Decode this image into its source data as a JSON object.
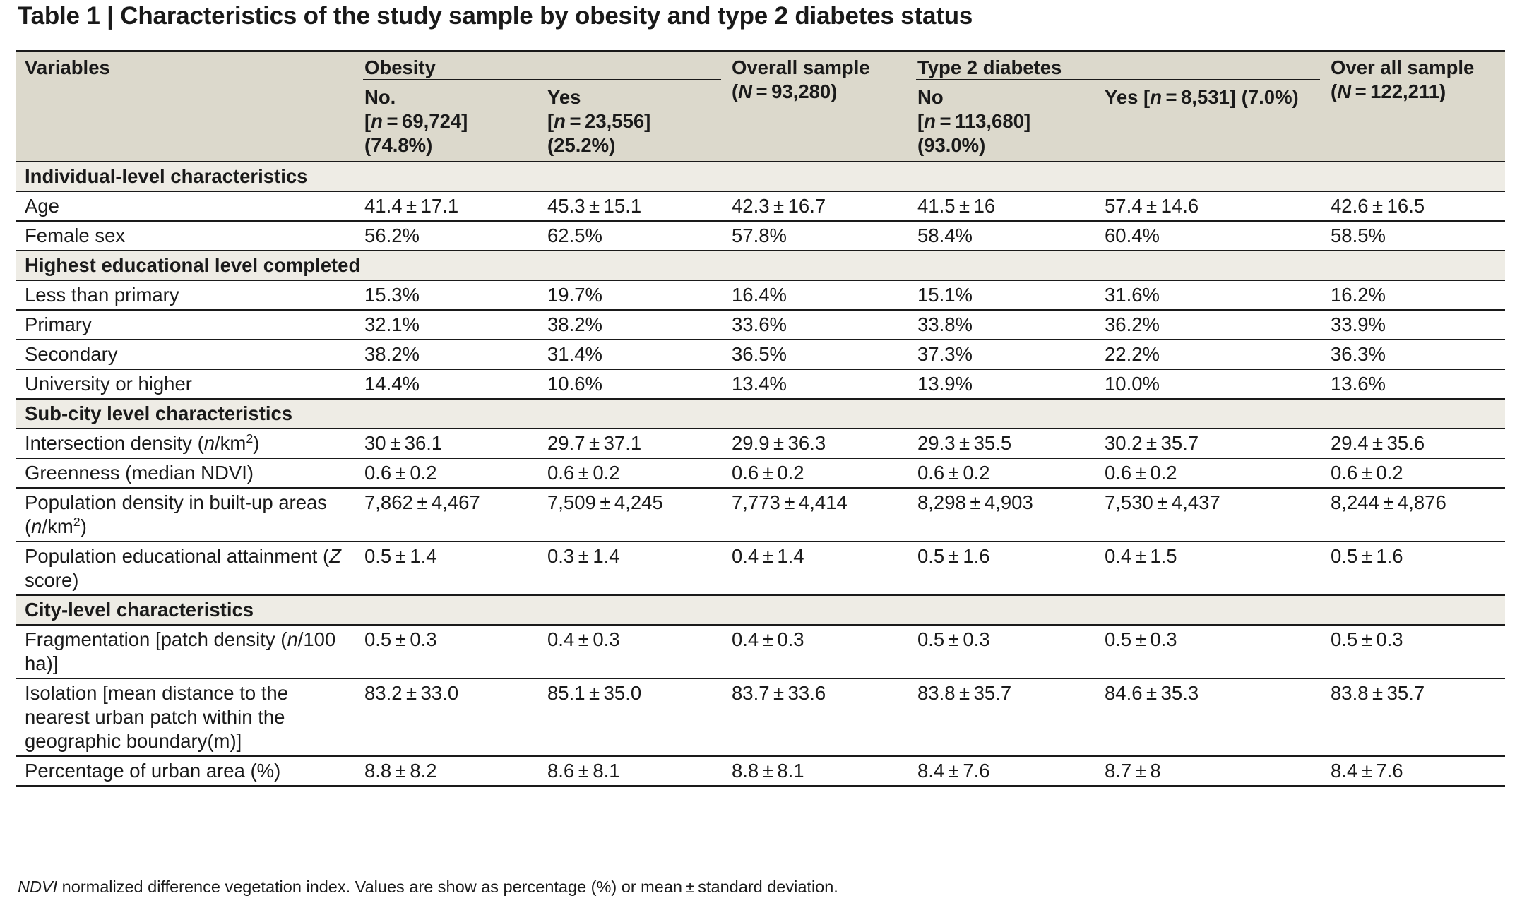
{
  "title": "Table 1 | Characteristics of the study sample by obesity and type 2 diabetes status",
  "header": {
    "variables": "Variables",
    "obesity": "Obesity",
    "overall_sample": "Overall sample",
    "overall_sample_n": "(N = 93,280)",
    "type2_diabetes": "Type 2 diabetes",
    "over_all_sample": "Over all sample",
    "over_all_sample_n": "(N = 122,211)",
    "obesity_no": [
      "No.",
      "[n = 69,724]",
      "(74.8%)"
    ],
    "obesity_yes": [
      "Yes",
      "[n = 23,556]",
      "(25.2%)"
    ],
    "t2d_no": [
      "No",
      "[n = 113,680]",
      "(93.0%)"
    ],
    "t2d_yes": "Yes [n = 8,531] (7.0%)"
  },
  "rows": [
    {
      "type": "section",
      "label": "Individual-level characteristics"
    },
    {
      "type": "data",
      "label": "Age",
      "values": [
        "41.4 ± 17.1",
        "45.3 ± 15.1",
        "42.3 ± 16.7",
        "41.5 ± 16",
        "57.4 ± 14.6",
        "42.6 ± 16.5"
      ]
    },
    {
      "type": "data",
      "label": "Female sex",
      "values": [
        "56.2%",
        "62.5%",
        "57.8%",
        "58.4%",
        "60.4%",
        "58.5%"
      ]
    },
    {
      "type": "section",
      "label": "Highest educational level completed"
    },
    {
      "type": "data",
      "label": "Less than primary",
      "values": [
        "15.3%",
        "19.7%",
        "16.4%",
        "15.1%",
        "31.6%",
        "16.2%"
      ]
    },
    {
      "type": "data",
      "label": "Primary",
      "values": [
        "32.1%",
        "38.2%",
        "33.6%",
        "33.8%",
        "36.2%",
        "33.9%"
      ]
    },
    {
      "type": "data",
      "label": "Secondary",
      "values": [
        "38.2%",
        "31.4%",
        "36.5%",
        "37.3%",
        "22.2%",
        "36.3%"
      ]
    },
    {
      "type": "data",
      "label": "University or higher",
      "values": [
        "14.4%",
        "10.6%",
        "13.4%",
        "13.9%",
        "10.0%",
        "13.6%"
      ]
    },
    {
      "type": "section",
      "label": "Sub-city level characteristics"
    },
    {
      "type": "data",
      "label": "Intersection density (n/km²)",
      "values": [
        "30 ± 36.1",
        "29.7 ± 37.1",
        "29.9 ± 36.3",
        "29.3 ± 35.5",
        "30.2 ± 35.7",
        "29.4 ± 35.6"
      ]
    },
    {
      "type": "data",
      "label": "Greenness (median NDVI)",
      "values": [
        "0.6 ± 0.2",
        "0.6 ± 0.2",
        "0.6 ± 0.2",
        "0.6 ± 0.2",
        "0.6 ± 0.2",
        "0.6 ± 0.2"
      ]
    },
    {
      "type": "data",
      "label": "Population density in built-up areas (n/km²)",
      "values": [
        "7,862 ± 4,467",
        "7,509 ± 4,245",
        "7,773 ± 4,414",
        "8,298 ± 4,903",
        "7,530 ± 4,437",
        "8,244 ± 4,876"
      ]
    },
    {
      "type": "data",
      "label": "Population educational attainment (Z score)",
      "values": [
        "0.5 ± 1.4",
        "0.3 ± 1.4",
        "0.4 ± 1.4",
        "0.5 ± 1.6",
        "0.4 ± 1.5",
        "0.5 ± 1.6"
      ]
    },
    {
      "type": "section",
      "label": "City-level characteristics"
    },
    {
      "type": "data",
      "label": "Fragmentation [patch density (n/100 ha)]",
      "values": [
        "0.5 ± 0.3",
        "0.4 ± 0.3",
        "0.4 ± 0.3",
        "0.5 ± 0.3",
        "0.5 ± 0.3",
        "0.5 ± 0.3"
      ]
    },
    {
      "type": "data",
      "label": "Isolation [mean distance to the nearest urban patch within the geographic boundary(m)]",
      "values": [
        "83.2 ± 33.0",
        "85.1 ± 35.0",
        "83.7 ± 33.6",
        "83.8 ± 35.7",
        "84.6 ± 35.3",
        "83.8 ± 35.7"
      ]
    },
    {
      "type": "data",
      "label": "Percentage of urban area (%)",
      "values": [
        "8.8 ± 8.2",
        "8.6 ± 8.1",
        "8.8 ± 8.1",
        "8.4 ± 7.6",
        "8.7 ± 8",
        "8.4 ± 7.6"
      ]
    }
  ],
  "footnote": {
    "abbr": "NDVI",
    "text": " normalized difference vegetation index. Values are show as percentage (%) or mean ± standard deviation."
  }
}
